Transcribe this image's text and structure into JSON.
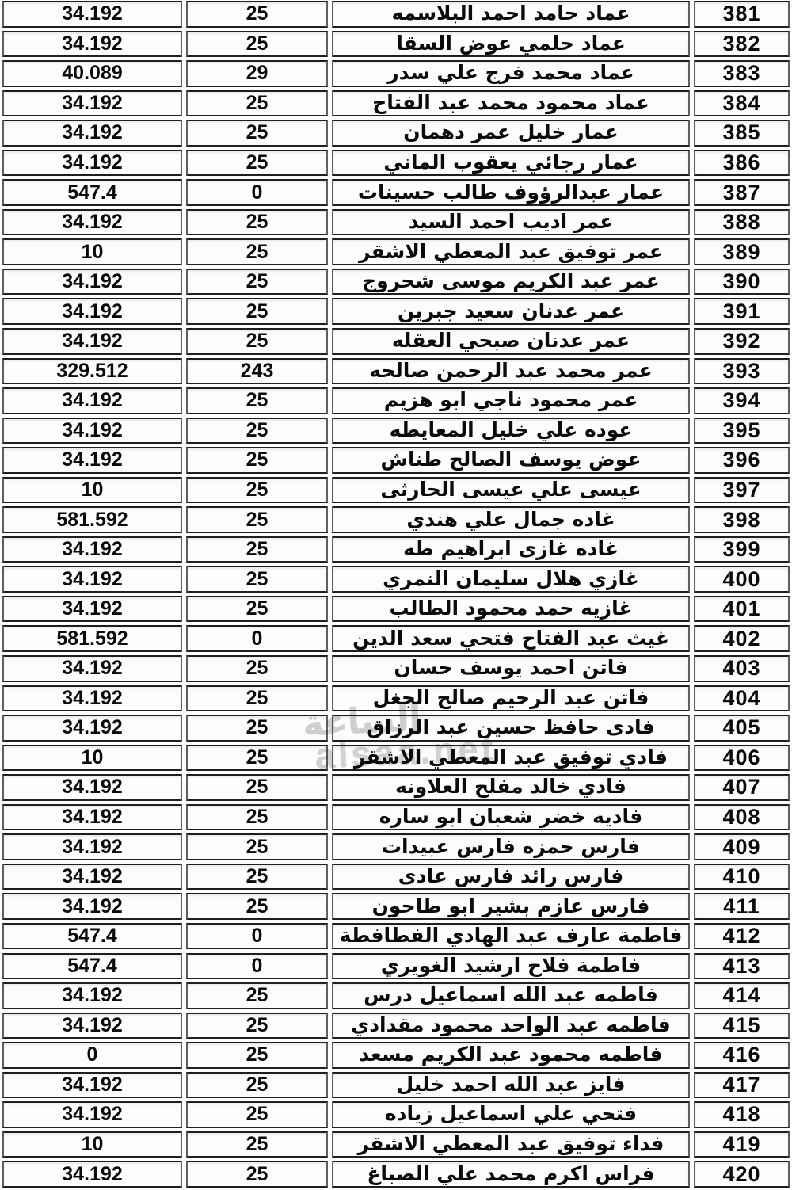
{
  "watermark": {
    "arabic": "الساعة",
    "site": "alsaa.net"
  },
  "table": {
    "rows": [
      {
        "index": "381",
        "name": "عماد حامد احمد البلاسمه",
        "count": "25",
        "value": "34.192"
      },
      {
        "index": "382",
        "name": "عماد حلمي عوض السقا",
        "count": "25",
        "value": "34.192"
      },
      {
        "index": "383",
        "name": "عماد محمد فرج علي سدر",
        "count": "29",
        "value": "40.089"
      },
      {
        "index": "384",
        "name": "عماد محمود محمد عبد الفتاح",
        "count": "25",
        "value": "34.192"
      },
      {
        "index": "385",
        "name": "عمار خليل عمر دهمان",
        "count": "25",
        "value": "34.192"
      },
      {
        "index": "386",
        "name": "عمار رجائي يعقوب الماني",
        "count": "25",
        "value": "34.192"
      },
      {
        "index": "387",
        "name": "عمار عبدالرؤوف طالب حسينات",
        "count": "0",
        "value": "547.4"
      },
      {
        "index": "388",
        "name": "عمر اديب احمد السيد",
        "count": "25",
        "value": "34.192"
      },
      {
        "index": "389",
        "name": "عمر توفيق عبد المعطي الاشقر",
        "count": "25",
        "value": "10"
      },
      {
        "index": "390",
        "name": "عمر عبد الكريم موسى شحروج",
        "count": "25",
        "value": "34.192"
      },
      {
        "index": "391",
        "name": "عمر عدنان سعيد جبرين",
        "count": "25",
        "value": "34.192"
      },
      {
        "index": "392",
        "name": "عمر عدنان صبحي العقله",
        "count": "25",
        "value": "34.192"
      },
      {
        "index": "393",
        "name": "عمر محمد عبد الرحمن صالحه",
        "count": "243",
        "value": "329.512"
      },
      {
        "index": "394",
        "name": "عمر محمود ناجي ابو هزيم",
        "count": "25",
        "value": "34.192"
      },
      {
        "index": "395",
        "name": "عوده علي خليل المعايطه",
        "count": "25",
        "value": "34.192"
      },
      {
        "index": "396",
        "name": "عوض يوسف الصالح طناش",
        "count": "25",
        "value": "34.192"
      },
      {
        "index": "397",
        "name": "عيسى علي عيسى الحارثى",
        "count": "25",
        "value": "10"
      },
      {
        "index": "398",
        "name": "غاده جمال علي هندي",
        "count": "25",
        "value": "581.592"
      },
      {
        "index": "399",
        "name": "غاده غازى ابراهيم طه",
        "count": "25",
        "value": "34.192"
      },
      {
        "index": "400",
        "name": "غازي هلال سليمان النمري",
        "count": "25",
        "value": "34.192"
      },
      {
        "index": "401",
        "name": "غازيه حمد محمود الطالب",
        "count": "25",
        "value": "34.192"
      },
      {
        "index": "402",
        "name": "غيث عبد الفتاح فتحي سعد الدين",
        "count": "0",
        "value": "581.592"
      },
      {
        "index": "403",
        "name": "فاتن احمد يوسف حسان",
        "count": "25",
        "value": "34.192"
      },
      {
        "index": "404",
        "name": "فاتن عبد الرحيم صالح الجغل",
        "count": "25",
        "value": "34.192"
      },
      {
        "index": "405",
        "name": "فادى حافظ حسين عبد الرزاق",
        "count": "25",
        "value": "34.192"
      },
      {
        "index": "406",
        "name": "فادي توفيق عبد المعطي الاشقر",
        "count": "25",
        "value": "10"
      },
      {
        "index": "407",
        "name": "فادي خالد مفلح العلاونه",
        "count": "25",
        "value": "34.192"
      },
      {
        "index": "408",
        "name": "فاديه خضر شعبان ابو ساره",
        "count": "25",
        "value": "34.192"
      },
      {
        "index": "409",
        "name": "فارس حمزه فارس عبيدات",
        "count": "25",
        "value": "34.192"
      },
      {
        "index": "410",
        "name": "فارس رائد فارس عادى",
        "count": "25",
        "value": "34.192"
      },
      {
        "index": "411",
        "name": "فارس عازم بشير ابو طاحون",
        "count": "25",
        "value": "34.192"
      },
      {
        "index": "412",
        "name": "فاطمة عارف عبد الهادي الفطافطة",
        "count": "0",
        "value": "547.4"
      },
      {
        "index": "413",
        "name": "فاطمة فلاح ارشيد الغويري",
        "count": "0",
        "value": "547.4"
      },
      {
        "index": "414",
        "name": "فاطمه عبد الله اسماعيل درس",
        "count": "25",
        "value": "34.192"
      },
      {
        "index": "415",
        "name": "فاطمه عبد الواحد محمود مقدادي",
        "count": "25",
        "value": "34.192"
      },
      {
        "index": "416",
        "name": "فاطمه محمود عبد الكريم مسعد",
        "count": "25",
        "value": "0"
      },
      {
        "index": "417",
        "name": "فايز عبد الله احمد خليل",
        "count": "25",
        "value": "34.192"
      },
      {
        "index": "418",
        "name": "فتحي علي اسماعيل زياده",
        "count": "25",
        "value": "34.192"
      },
      {
        "index": "419",
        "name": "فداء توفيق عبد المعطي الاشقر",
        "count": "25",
        "value": "10"
      },
      {
        "index": "420",
        "name": "فراس اكرم محمد علي الصباغ",
        "count": "25",
        "value": "34.192"
      }
    ]
  }
}
